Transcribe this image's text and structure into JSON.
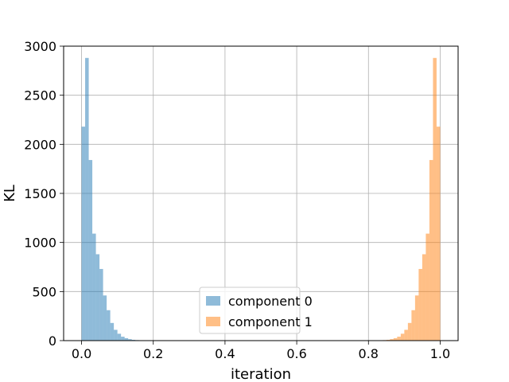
{
  "chart_data": {
    "type": "bar",
    "title": "",
    "xlabel": "iteration",
    "ylabel": "KL",
    "xlim": [
      -0.05,
      1.05
    ],
    "ylim": [
      0,
      3000
    ],
    "xticks": [
      0.0,
      0.2,
      0.4,
      0.6,
      0.8,
      1.0
    ],
    "xtick_labels": [
      "0.0",
      "0.2",
      "0.4",
      "0.6",
      "0.8",
      "1.0"
    ],
    "yticks": [
      0,
      500,
      1000,
      1500,
      2000,
      2500,
      3000
    ],
    "ytick_labels": [
      "0",
      "500",
      "1000",
      "1500",
      "2000",
      "2500",
      "3000"
    ],
    "grid": true,
    "legend_position": "lower-center",
    "bin_width": 0.01,
    "series": [
      {
        "name": "component 0",
        "color": "#1f77b4",
        "alpha": 0.5,
        "bin_starts": [
          0.0,
          0.01,
          0.02,
          0.03,
          0.04,
          0.05,
          0.06,
          0.07,
          0.08,
          0.09,
          0.1,
          0.11,
          0.12,
          0.13,
          0.14,
          0.15,
          0.16
        ],
        "counts": [
          2180,
          2880,
          1840,
          1090,
          880,
          730,
          460,
          310,
          180,
          110,
          70,
          40,
          25,
          15,
          8,
          5,
          3
        ]
      },
      {
        "name": "component 1",
        "color": "#ff7f0e",
        "alpha": 0.5,
        "bin_starts": [
          0.83,
          0.84,
          0.85,
          0.86,
          0.87,
          0.88,
          0.89,
          0.9,
          0.91,
          0.92,
          0.93,
          0.94,
          0.95,
          0.96,
          0.97,
          0.98,
          0.99
        ],
        "counts": [
          3,
          5,
          8,
          15,
          25,
          40,
          70,
          110,
          180,
          310,
          460,
          730,
          880,
          1090,
          1840,
          2880,
          2180
        ]
      }
    ]
  }
}
